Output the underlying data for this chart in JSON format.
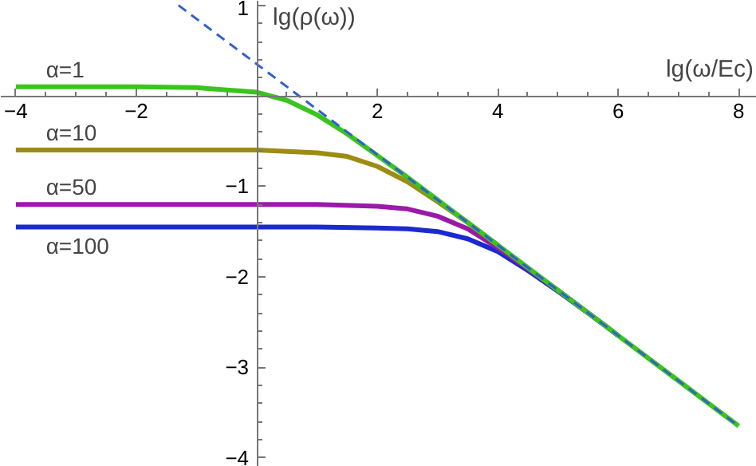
{
  "chart_data": {
    "type": "line",
    "xlabel": "lg(ω/Ec)",
    "ylabel": "lg(ρ(ω))",
    "xlim": [
      -4.25,
      8.3
    ],
    "ylim": [
      -4.1,
      1.05
    ],
    "xticks": [
      -4,
      -2,
      2,
      4,
      6,
      8,
      {
        "value": -3.5,
        "label": null
      },
      {
        "value": -3,
        "label": null
      },
      {
        "value": -2.5,
        "label": null
      },
      {
        "value": -1.5,
        "label": null
      },
      {
        "value": -1,
        "label": null
      },
      {
        "value": -0.5,
        "label": null
      },
      {
        "value": 0.5,
        "label": null
      },
      {
        "value": 1,
        "label": null
      },
      {
        "value": 1.5,
        "label": null
      },
      {
        "value": 2.5,
        "label": null
      },
      {
        "value": 3,
        "label": null
      },
      {
        "value": 3.5,
        "label": null
      },
      {
        "value": 4.5,
        "label": null
      },
      {
        "value": 5,
        "label": null
      },
      {
        "value": 5.5,
        "label": null
      },
      {
        "value": 6.5,
        "label": null
      },
      {
        "value": 7,
        "label": null
      },
      {
        "value": 7.5,
        "label": null
      }
    ],
    "yticks": [
      -4,
      -3,
      -2,
      -1,
      1,
      {
        "value": -3.8,
        "label": null
      },
      {
        "value": -3.6,
        "label": null
      },
      {
        "value": -3.4,
        "label": null
      },
      {
        "value": -3.2,
        "label": null
      },
      {
        "value": -2.8,
        "label": null
      },
      {
        "value": -2.6,
        "label": null
      },
      {
        "value": -2.4,
        "label": null
      },
      {
        "value": -2.2,
        "label": null
      },
      {
        "value": -1.8,
        "label": null
      },
      {
        "value": -1.6,
        "label": null
      },
      {
        "value": -1.4,
        "label": null
      },
      {
        "value": -1.2,
        "label": null
      },
      {
        "value": -0.8,
        "label": null
      },
      {
        "value": -0.6,
        "label": null
      },
      {
        "value": -0.4,
        "label": null
      },
      {
        "value": -0.2,
        "label": null
      },
      {
        "value": 0.2,
        "label": null
      },
      {
        "value": 0.4,
        "label": null
      },
      {
        "value": 0.6,
        "label": null
      },
      {
        "value": 0.8,
        "label": null
      }
    ],
    "grid": false,
    "series": [
      {
        "name": "α=1",
        "color": "#3cc41e",
        "x": [
          -4,
          -2,
          -1,
          0,
          0.5,
          1,
          1.5,
          2,
          2.5,
          3,
          4,
          5,
          6,
          7,
          8
        ],
        "values": [
          0.1,
          0.1,
          0.09,
          0.04,
          -0.05,
          -0.21,
          -0.42,
          -0.66,
          -0.9,
          -1.15,
          -1.65,
          -2.15,
          -2.65,
          -3.15,
          -3.65
        ]
      },
      {
        "name": "α=10",
        "color": "#9c8c14",
        "x": [
          -4,
          -2,
          0,
          1,
          1.5,
          2,
          2.5,
          3,
          3.5,
          4
        ],
        "values": [
          -0.6,
          -0.6,
          -0.6,
          -0.63,
          -0.67,
          -0.78,
          -0.95,
          -1.17,
          -1.4,
          -1.65
        ]
      },
      {
        "name": "α=50",
        "color": "#9a1aa8",
        "x": [
          -4,
          -2,
          0,
          1,
          2,
          2.5,
          3,
          3.5,
          4,
          4.5,
          5,
          5.5
        ],
        "values": [
          -1.2,
          -1.2,
          -1.2,
          -1.2,
          -1.22,
          -1.25,
          -1.33,
          -1.47,
          -1.68,
          -1.91,
          -2.15,
          -2.4
        ]
      },
      {
        "name": "α=100",
        "color": "#1a2ad0",
        "x": [
          -4,
          -2,
          0,
          1,
          2,
          2.5,
          3,
          3.5,
          4,
          4.5,
          5,
          5.5,
          6
        ],
        "values": [
          -1.45,
          -1.45,
          -1.45,
          -1.45,
          -1.46,
          -1.47,
          -1.5,
          -1.58,
          -1.72,
          -1.93,
          -2.16,
          -2.4,
          -2.65
        ]
      },
      {
        "color": "#3060d0",
        "line_style": "dashed",
        "x": [
          -1.3,
          8
        ],
        "values": [
          1.0,
          -3.65
        ]
      }
    ]
  }
}
